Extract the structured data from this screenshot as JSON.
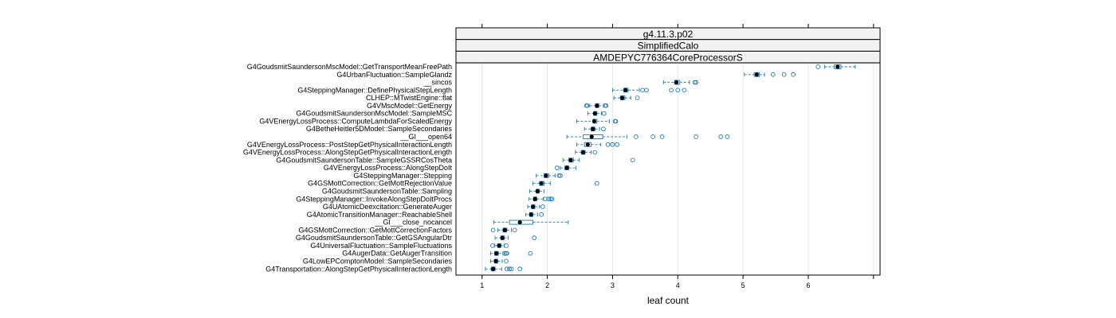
{
  "chart_data": {
    "type": "boxplot",
    "panel_strips": [
      "g4.11.3.p02",
      "SimplifiedCalo",
      "AMDEPYC776364CoreProcessorS"
    ],
    "xlabel": "leaf count",
    "xlim": [
      0.6,
      7.1
    ],
    "xticks": [
      1,
      2,
      3,
      4,
      5,
      6,
      7
    ],
    "grid": true,
    "colors": {
      "box": "#1f7ab8",
      "median": "#000000",
      "outlier": "#1f7ab8",
      "grid": "#e6e6e6"
    },
    "categories": [
      {
        "label": "G4GoudsmitSaundersonMscModel::GetTransportMeanFreePath",
        "q1": 6.4,
        "median": 6.45,
        "q3": 6.5,
        "wlo": 6.25,
        "whi": 6.72,
        "outliers": [
          6.15
        ]
      },
      {
        "label": "G4UrbanFluctuation::SampleGlandz",
        "q1": 5.17,
        "median": 5.21,
        "q3": 5.25,
        "wlo": 5.02,
        "whi": 5.33,
        "outliers": [
          5.46,
          5.63,
          5.77
        ]
      },
      {
        "label": "__sincos",
        "q1": 3.95,
        "median": 3.98,
        "q3": 4.03,
        "wlo": 3.78,
        "whi": 4.18,
        "outliers": [
          4.26,
          4.28
        ]
      },
      {
        "label": "G4SteppingManager::DefinePhysicalStepLength",
        "q1": 3.17,
        "median": 3.2,
        "q3": 3.24,
        "wlo": 3.0,
        "whi": 3.41,
        "outliers": [
          3.46,
          3.52,
          3.9,
          4.0,
          4.1
        ]
      },
      {
        "label": "CLHEP::MTwistEngine::flat",
        "q1": 3.12,
        "median": 3.15,
        "q3": 3.19,
        "wlo": 3.02,
        "whi": 3.28,
        "outliers": [
          3.38
        ]
      },
      {
        "label": "G4VMscModel::GetEnergy",
        "q1": 2.74,
        "median": 2.76,
        "q3": 2.79,
        "wlo": 2.65,
        "whi": 2.86,
        "outliers": [
          2.6,
          2.61,
          2.89,
          2.9
        ]
      },
      {
        "label": "G4GoudsmitSaundersonMscModel::SampleMSC",
        "q1": 2.71,
        "median": 2.73,
        "q3": 2.76,
        "wlo": 2.62,
        "whi": 2.83,
        "outliers": [
          2.87
        ]
      },
      {
        "label": "G4VEnergyLossProcess::ComputeLambdaForScaledEnergy",
        "q1": 2.7,
        "median": 2.72,
        "q3": 2.76,
        "wlo": 2.45,
        "whi": 2.95,
        "outliers": [
          3.04,
          3.05
        ]
      },
      {
        "label": "G4BetheHeitler5DModel::SampleSecondaries",
        "q1": 2.67,
        "median": 2.7,
        "q3": 2.73,
        "wlo": 2.57,
        "whi": 2.8,
        "outliers": [
          2.86
        ]
      },
      {
        "label": "__GI___open64",
        "q1": 2.55,
        "median": 2.68,
        "q3": 2.85,
        "wlo": 2.3,
        "whi": 3.22,
        "outliers": [
          3.36,
          3.62,
          3.76,
          4.28,
          4.66,
          4.76
        ]
      },
      {
        "label": "G4VEnergyLossProcess::PostStepGetPhysicalInteractionLength",
        "q1": 2.57,
        "median": 2.62,
        "q3": 2.67,
        "wlo": 2.45,
        "whi": 2.82,
        "outliers": [
          2.93,
          3.0,
          3.07
        ]
      },
      {
        "label": "G4VEnergyLossProcess::AlongStepGetPhysicalInteractionLength",
        "q1": 2.52,
        "median": 2.55,
        "q3": 2.58,
        "wlo": 2.43,
        "whi": 2.67,
        "outliers": [
          2.73
        ]
      },
      {
        "label": "G4GoudsmitSaundersonTable::SampleGSSRCosTheta",
        "q1": 2.33,
        "median": 2.36,
        "q3": 2.4,
        "wlo": 2.24,
        "whi": 2.49,
        "outliers": [
          3.31
        ]
      },
      {
        "label": "G4VEnergyLossProcess::AlongStepDoIt",
        "q1": 2.27,
        "median": 2.3,
        "q3": 2.33,
        "wlo": 2.2,
        "whi": 2.44,
        "outliers": [
          2.15
        ]
      },
      {
        "label": "G4SteppingManager::Stepping",
        "q1": 1.95,
        "median": 1.98,
        "q3": 2.02,
        "wlo": 1.83,
        "whi": 2.12,
        "outliers": [
          2.18,
          2.2
        ]
      },
      {
        "label": "G4GSMottCorrection::GetMottRejectionValue",
        "q1": 1.88,
        "median": 1.91,
        "q3": 1.95,
        "wlo": 1.78,
        "whi": 2.05,
        "outliers": [
          2.76
        ]
      },
      {
        "label": "G4GoudsmitSaundersonTable::Sampling",
        "q1": 1.83,
        "median": 1.85,
        "q3": 1.88,
        "wlo": 1.73,
        "whi": 1.95,
        "outliers": []
      },
      {
        "label": "G4SteppingManager::InvokeAlongStepDoItProcs",
        "q1": 1.79,
        "median": 1.81,
        "q3": 1.84,
        "wlo": 1.72,
        "whi": 1.94,
        "outliers": [
          1.97,
          2.02,
          2.05,
          2.07
        ]
      },
      {
        "label": "G4UAtomicDeexcitation::GenerateAuger",
        "q1": 1.76,
        "median": 1.78,
        "q3": 1.81,
        "wlo": 1.7,
        "whi": 1.88,
        "outliers": [
          1.93
        ]
      },
      {
        "label": "G4AtomicTransitionManager::ReachableShell",
        "q1": 1.73,
        "median": 1.75,
        "q3": 1.78,
        "wlo": 1.67,
        "whi": 1.85,
        "outliers": [
          1.91
        ]
      },
      {
        "label": "__GI___close_nocancel",
        "q1": 1.42,
        "median": 1.58,
        "q3": 1.78,
        "wlo": 1.18,
        "whi": 2.32,
        "outliers": []
      },
      {
        "label": "G4GSMottCorrection::GetMottCorrectionFactors",
        "q1": 1.32,
        "median": 1.35,
        "q3": 1.38,
        "wlo": 1.24,
        "whi": 1.45,
        "outliers": [
          1.17,
          1.5
        ]
      },
      {
        "label": "G4GoudsmitSaundersonTable::GetGSAngularDtr",
        "q1": 1.29,
        "median": 1.31,
        "q3": 1.34,
        "wlo": 1.2,
        "whi": 1.4,
        "outliers": [
          1.8
        ]
      },
      {
        "label": "G4UniversalFluctuation::SampleFluctuations",
        "q1": 1.24,
        "median": 1.26,
        "q3": 1.29,
        "wlo": 1.19,
        "whi": 1.34,
        "outliers": [
          1.16,
          1.37
        ]
      },
      {
        "label": "G4AugerData::GetAugerTransition",
        "q1": 1.19,
        "median": 1.22,
        "q3": 1.25,
        "wlo": 1.13,
        "whi": 1.32,
        "outliers": [
          1.35,
          1.37,
          1.38,
          1.74
        ]
      },
      {
        "label": "G4LowEPComptonModel::SampleSecondaries",
        "q1": 1.19,
        "median": 1.21,
        "q3": 1.24,
        "wlo": 1.13,
        "whi": 1.31,
        "outliers": [
          1.37
        ]
      },
      {
        "label": "G4Transportation::AlongStepGetPhysicalInteractionLength",
        "q1": 1.14,
        "median": 1.17,
        "q3": 1.2,
        "wlo": 1.05,
        "whi": 1.3,
        "outliers": [
          1.38,
          1.42,
          1.45,
          1.58
        ]
      }
    ]
  }
}
